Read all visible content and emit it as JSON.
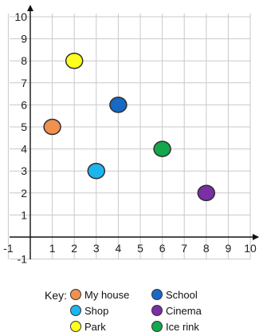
{
  "chart_data": {
    "type": "scatter",
    "title": "",
    "xlabel": "",
    "ylabel": "",
    "xlim": [
      -1,
      10
    ],
    "ylim": [
      -1,
      10
    ],
    "x_ticks": [
      "-1",
      "1",
      "2",
      "3",
      "4",
      "5",
      "6",
      "7",
      "8",
      "9",
      "10"
    ],
    "y_ticks": [
      "10",
      "9",
      "8",
      "7",
      "6",
      "5",
      "4",
      "3",
      "2",
      "1",
      "-1"
    ],
    "grid": true,
    "points": [
      {
        "name": "My house",
        "x": 1,
        "y": 5,
        "color": "#f0914f"
      },
      {
        "name": "Shop",
        "x": 3,
        "y": 3,
        "color": "#1cb6ef"
      },
      {
        "name": "Park",
        "x": 2,
        "y": 8,
        "color": "#ffff1f"
      },
      {
        "name": "School",
        "x": 4,
        "y": 6,
        "color": "#1869c4"
      },
      {
        "name": "Cinema",
        "x": 8,
        "y": 2,
        "color": "#7a2fa5"
      },
      {
        "name": "Ice rink",
        "x": 6,
        "y": 4,
        "color": "#13a84b"
      }
    ]
  },
  "key": {
    "title": "Key:",
    "items": [
      {
        "label": "My house",
        "color": "#f0914f"
      },
      {
        "label": "Shop",
        "color": "#1cb6ef"
      },
      {
        "label": "Park",
        "color": "#ffff1f"
      },
      {
        "label": "School",
        "color": "#1869c4"
      },
      {
        "label": "Cinema",
        "color": "#7a2fa5"
      },
      {
        "label": "Ice rink",
        "color": "#13a84b"
      }
    ]
  }
}
